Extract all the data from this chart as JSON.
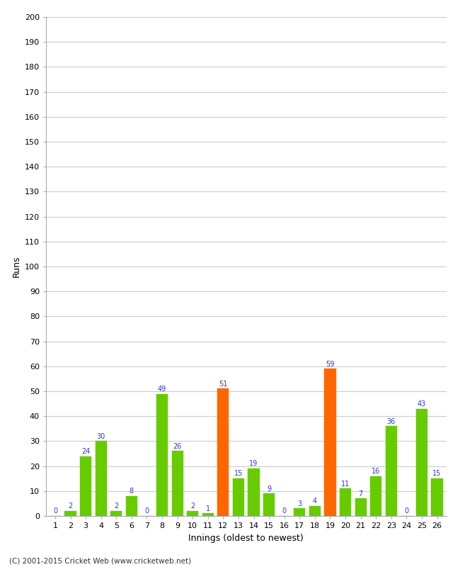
{
  "innings": [
    1,
    2,
    3,
    4,
    5,
    6,
    7,
    8,
    9,
    10,
    11,
    12,
    13,
    14,
    15,
    16,
    17,
    18,
    19,
    20,
    21,
    22,
    23,
    24,
    25,
    26
  ],
  "runs": [
    0,
    2,
    24,
    30,
    2,
    8,
    0,
    49,
    26,
    2,
    1,
    51,
    15,
    19,
    9,
    0,
    3,
    4,
    59,
    11,
    7,
    16,
    36,
    0,
    43,
    15
  ],
  "colors": [
    "#66cc00",
    "#66cc00",
    "#66cc00",
    "#66cc00",
    "#66cc00",
    "#66cc00",
    "#66cc00",
    "#66cc00",
    "#66cc00",
    "#66cc00",
    "#66cc00",
    "#ff6600",
    "#66cc00",
    "#66cc00",
    "#66cc00",
    "#66cc00",
    "#66cc00",
    "#66cc00",
    "#ff6600",
    "#66cc00",
    "#66cc00",
    "#66cc00",
    "#66cc00",
    "#66cc00",
    "#66cc00",
    "#66cc00"
  ],
  "ylabel": "Runs",
  "xlabel": "Innings (oldest to newest)",
  "ylim": [
    0,
    200
  ],
  "yticks": [
    0,
    10,
    20,
    30,
    40,
    50,
    60,
    70,
    80,
    90,
    100,
    110,
    120,
    130,
    140,
    150,
    160,
    170,
    180,
    190,
    200
  ],
  "footer": "(C) 2001-2015 Cricket Web (www.cricketweb.net)",
  "bar_value_color": "#3333cc",
  "bar_value_fontsize": 7,
  "background_color": "#ffffff",
  "grid_color": "#cccccc",
  "tick_fontsize": 8,
  "axis_label_fontsize": 9
}
